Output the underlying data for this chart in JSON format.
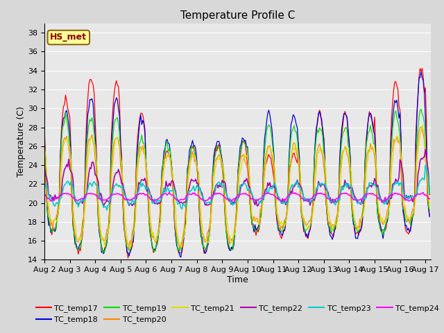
{
  "title": "Temperature Profile C",
  "xlabel": "Time",
  "ylabel": "Temperature (C)",
  "ylim": [
    14,
    39
  ],
  "annotation": "HS_met",
  "series_colors": {
    "TC_temp17": "#ff0000",
    "TC_temp18": "#0000dd",
    "TC_temp19": "#00dd00",
    "TC_temp20": "#ff8800",
    "TC_temp21": "#dddd00",
    "TC_temp22": "#aa00aa",
    "TC_temp23": "#00cccc",
    "TC_temp24": "#ff00ff"
  },
  "background_color": "#e8e8e8",
  "grid_color": "#ffffff",
  "x_tick_labels": [
    "Aug 2",
    "Aug 3",
    "Aug 4",
    "Aug 5",
    "Aug 6",
    "Aug 7",
    "Aug 8",
    "Aug 9",
    "Aug 10",
    "Aug 11",
    "Aug 12",
    "Aug 13",
    "Aug 14",
    "Aug 15",
    "Aug 16",
    "Aug 17"
  ],
  "x_tick_positions": [
    0,
    24,
    48,
    72,
    96,
    120,
    144,
    168,
    192,
    216,
    240,
    264,
    288,
    312,
    336,
    360
  ],
  "yticks": [
    14,
    16,
    18,
    20,
    22,
    24,
    26,
    28,
    30,
    32,
    34,
    36,
    38
  ],
  "n_hours": 365
}
